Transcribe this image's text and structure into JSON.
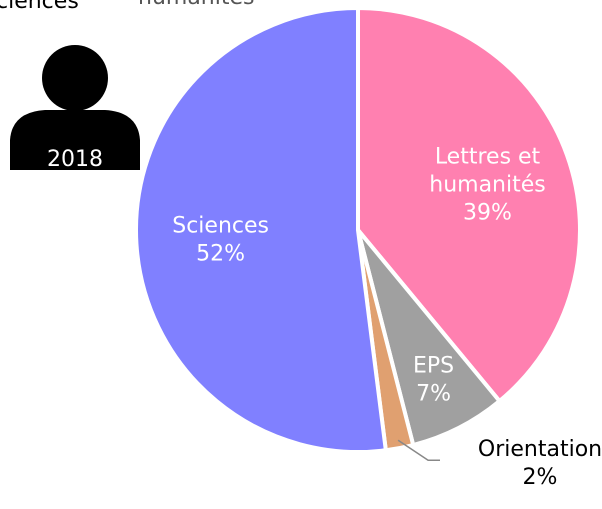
{
  "chart_data": {
    "type": "pie",
    "categories": [
      "Lettres et humanités",
      "EPS",
      "Orientation",
      "Sciences"
    ],
    "values": [
      39,
      7,
      2,
      52
    ],
    "value_labels": [
      "39%",
      "7%",
      "2%",
      "52%"
    ],
    "colors": [
      "#ff80b0",
      "#a0a0a0",
      "#e0a070",
      "#8080ff"
    ],
    "year": "2018",
    "cropped_labels": [
      "ciences",
      "humanités"
    ]
  }
}
